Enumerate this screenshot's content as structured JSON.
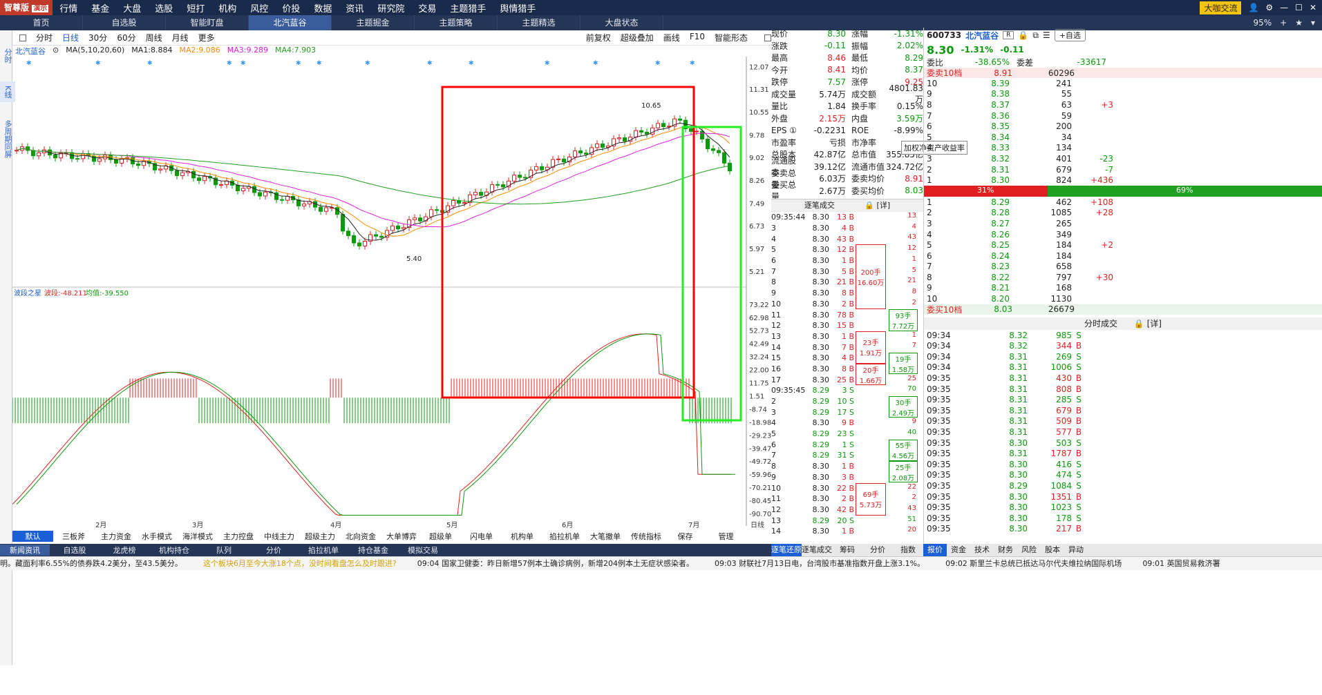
{
  "topbar": {
    "logo": "智尊版",
    "logo_badge": "演示",
    "menus": [
      "行情",
      "基金",
      "大盘",
      "选股",
      "短打",
      "机构",
      "风控",
      "价投",
      "数据",
      "资讯",
      "研究院",
      "交易",
      "主题猎手",
      "舆情猎手"
    ],
    "exchange_btn": "大咖交流"
  },
  "tabs": {
    "items": [
      "首页",
      "自选股",
      "智能盯盘",
      "北汽蓝谷",
      "主题掘金",
      "主题策略",
      "主题精选",
      "大盘状态"
    ],
    "active": "北汽蓝谷",
    "zoom": "95%"
  },
  "left_side": [
    "分时",
    "K线",
    "多周期同屏"
  ],
  "toolbar": {
    "items": [
      "分时",
      "日线",
      "30分",
      "60分",
      "周线",
      "月线",
      "更多"
    ],
    "active": "日线",
    "right": [
      "前复权",
      "超级叠加",
      "画线",
      "F10",
      "智能形态"
    ]
  },
  "ma": {
    "name": "北汽蓝谷",
    "label": "MA(5,10,20,60)",
    "ma1": "MA1:8.884",
    "ma2": "MA2:9.086",
    "ma3": "MA3:9.289",
    "ma4": "MA4:7.903"
  },
  "price_axis": [
    "12.07",
    "11.31",
    "10.55",
    "9.78",
    "9.02",
    "8.26",
    "7.49",
    "6.73",
    "5.97",
    "5.21"
  ],
  "hi_label": "10.65",
  "lo_label": "5.40",
  "indicator": {
    "name": "波段之星",
    "val1": "波段:-48.211",
    "val2": "均值:-39.550",
    "axis": [
      "73.22",
      "62.98",
      "52.73",
      "42.49",
      "32.24",
      "22.00",
      "11.75",
      "1.51",
      "-8.74",
      "-18.98",
      "-29.23",
      "-39.47",
      "-49.72",
      "-59.96",
      "-70.21",
      "-80.45",
      "-90.70"
    ]
  },
  "months": [
    "2月",
    "3月",
    "4月",
    "5月",
    "6月",
    "7月"
  ],
  "axis_label": "日线",
  "bottom_tabs": [
    "默认",
    "三板斧",
    "主力资金",
    "水手模式",
    "海洋模式",
    "主力控盘",
    "中线主力",
    "超级主力",
    "北向资金",
    "大单博弈",
    "超级单",
    "闪电单",
    "机构单",
    "掐拉机单",
    "大笔撤单",
    "传统指标",
    "保存",
    "管理"
  ],
  "bottom_tabs2": [
    "新闻资讯",
    "自选股",
    "龙虎榜",
    "机构持仓",
    "队列",
    "分价",
    "掐拉机单",
    "持仓基金",
    "模拟交易"
  ],
  "ticker": [
    "明。藏面利率6.55%的债券跌4.2美分，至43.5美分。",
    "这个板块6月至今大涨18个点，没时间看盘怎么及时跟进?",
    "09:04 国家卫健委：昨日新增57例本土确诊病例，新增204例本土无症状感染者。",
    "09:03 财联社7月13日电，台湾股市基准指数开盘上涨3.1%。",
    "09:02 斯里兰卡总统已抵达马尔代夫维拉纳国际机场",
    "09:01 英国贸易救济署"
  ],
  "quote": [
    [
      "现价",
      "8.30",
      "涨幅",
      "-1.31%"
    ],
    [
      "涨跌",
      "-0.11",
      "振幅",
      "2.02%"
    ],
    [
      "最高",
      "8.46",
      "最低",
      "8.29"
    ],
    [
      "今开",
      "8.41",
      "均价",
      "8.37"
    ],
    [
      "跌停",
      "7.57",
      "涨停",
      "9.25"
    ],
    [
      "成交量",
      "5.74万",
      "成交额",
      "4801.83万"
    ],
    [
      "量比",
      "1.84",
      "换手率",
      "0.15%"
    ],
    [
      "外盘",
      "2.15万",
      "内盘",
      "3.59万"
    ],
    [
      "EPS ①",
      "-0.2231",
      "ROE",
      "-8.99%"
    ],
    [
      "市盈率",
      "亏损",
      "市净率",
      ""
    ],
    [
      "总股本",
      "42.87亿",
      "总市值",
      "355.85亿"
    ],
    [
      "流通股本",
      "39.12亿",
      "流通市值",
      "324.72亿"
    ],
    [
      "委卖总量",
      "6.03万",
      "委卖均价",
      "8.91"
    ],
    [
      "委买总量",
      "2.67万",
      "委买均价",
      "8.03"
    ]
  ],
  "tooltip": "加权净资产收益率",
  "trades": {
    "title": "逐笔成交",
    "detail": "[详]",
    "rows": [
      [
        "09:35:44",
        "8.30",
        "13 B"
      ],
      [
        "3",
        "8.30",
        "4 B"
      ],
      [
        "4",
        "8.30",
        "43 B"
      ],
      [
        "5",
        "8.30",
        "12 B"
      ],
      [
        "6",
        "8.30",
        "1 B"
      ],
      [
        "7",
        "8.30",
        "5 B"
      ],
      [
        "8",
        "8.30",
        "21 B"
      ],
      [
        "9",
        "8.30",
        "8 B"
      ],
      [
        "10",
        "8.30",
        "2 B"
      ],
      [
        "11",
        "8.30",
        "78 B"
      ],
      [
        "12",
        "8.30",
        "15 B"
      ],
      [
        "13",
        "8.30",
        "1 B"
      ],
      [
        "14",
        "8.30",
        "7 B"
      ],
      [
        "15",
        "8.30",
        "4 B"
      ],
      [
        "16",
        "8.30",
        "8 B"
      ],
      [
        "17",
        "8.30",
        "25 B"
      ],
      [
        "09:35:45",
        "8.29",
        "3 S"
      ],
      [
        "2",
        "8.29",
        "10 S"
      ],
      [
        "3",
        "8.29",
        "17 S"
      ],
      [
        "4",
        "8.30",
        "9 B"
      ],
      [
        "5",
        "8.29",
        "23 S"
      ],
      [
        "6",
        "8.29",
        "1 S"
      ],
      [
        "7",
        "8.29",
        "31 S"
      ],
      [
        "8",
        "8.30",
        "1 B"
      ],
      [
        "9",
        "8.30",
        "3 B"
      ],
      [
        "10",
        "8.30",
        "22 B"
      ],
      [
        "11",
        "8.30",
        "2 B"
      ],
      [
        "12",
        "8.30",
        "42 B"
      ],
      [
        "13",
        "8.29",
        "20 S"
      ],
      [
        "14",
        "8.30",
        "1 B"
      ]
    ],
    "boxes": [
      "200手",
      "16.60万",
      "23手",
      "1.91万",
      "20手",
      "1.66万",
      "69手",
      "5.73万"
    ],
    "boxes2": [
      "93手",
      "7.72万",
      "19手",
      "1.58万",
      "30手",
      "2.49万",
      "55手",
      "4.56万",
      "25手",
      "2.08万"
    ],
    "marks": [
      "13",
      "4",
      "43",
      "12",
      "1",
      "5",
      "21",
      "8",
      "2",
      "78",
      "15",
      "1",
      "7",
      "4",
      "8",
      "25",
      "70",
      "10",
      "40",
      "9",
      "40",
      "1",
      "51",
      "1",
      "3",
      "22",
      "2",
      "43",
      "51",
      "20",
      "43"
    ],
    "tabs": [
      "逐笔还原",
      "逐笔成交",
      "筹码",
      "分价",
      "指数"
    ]
  },
  "stock": {
    "code": "600733",
    "name": "北汽蓝谷",
    "price": "8.30",
    "pct": "-1.31%",
    "chg": "-0.11",
    "ratio_k": "委比",
    "ratio_v": "-38.65%",
    "diff_k": "委差",
    "diff_v": "-33617",
    "btn": "自选"
  },
  "sell10": {
    "title": "委卖10档",
    "price": "8.91",
    "qty": "60296",
    "levels": [
      [
        "10",
        "8.39",
        "241",
        ""
      ],
      [
        "9",
        "8.38",
        "55",
        ""
      ],
      [
        "8",
        "8.37",
        "63",
        "+3"
      ],
      [
        "7",
        "8.36",
        "59",
        ""
      ],
      [
        "6",
        "8.35",
        "200",
        ""
      ],
      [
        "5",
        "8.34",
        "34",
        ""
      ],
      [
        "4",
        "8.33",
        "134",
        ""
      ],
      [
        "3",
        "8.32",
        "401",
        "-23"
      ],
      [
        "2",
        "8.31",
        "679",
        "-7"
      ],
      [
        "1",
        "8.30",
        "824",
        "+436"
      ]
    ]
  },
  "bar": {
    "left": "31%",
    "right": "69%"
  },
  "buy10": {
    "title": "委买10档",
    "price": "8.03",
    "qty": "26679",
    "levels": [
      [
        "1",
        "8.29",
        "462",
        "+108"
      ],
      [
        "2",
        "8.28",
        "1085",
        "+28"
      ],
      [
        "3",
        "8.27",
        "265",
        ""
      ],
      [
        "4",
        "8.26",
        "349",
        ""
      ],
      [
        "5",
        "8.25",
        "184",
        "+2"
      ],
      [
        "6",
        "8.24",
        "184",
        ""
      ],
      [
        "7",
        "8.23",
        "658",
        ""
      ],
      [
        "8",
        "8.22",
        "797",
        "+30"
      ],
      [
        "9",
        "8.21",
        "168",
        ""
      ],
      [
        "10",
        "8.20",
        "1130",
        ""
      ]
    ]
  },
  "rtrades": {
    "title": "分时成交",
    "detail": "[详]",
    "rows": [
      [
        "09:34",
        "8.32",
        "985",
        "S"
      ],
      [
        "09:34",
        "8.32",
        "344",
        "B"
      ],
      [
        "09:34",
        "8.31",
        "269",
        "S"
      ],
      [
        "09:34",
        "8.31",
        "1006",
        "S"
      ],
      [
        "09:35",
        "8.31",
        "430",
        "B"
      ],
      [
        "09:35",
        "8.31",
        "808",
        "B"
      ],
      [
        "09:35",
        "8.31",
        "285",
        "S"
      ],
      [
        "09:35",
        "8.31",
        "679",
        "B"
      ],
      [
        "09:35",
        "8.31",
        "509",
        "B"
      ],
      [
        "09:35",
        "8.31",
        "577",
        "B"
      ],
      [
        "09:35",
        "8.30",
        "503",
        "S"
      ],
      [
        "09:35",
        "8.31",
        "1787",
        "B"
      ],
      [
        "09:35",
        "8.30",
        "416",
        "S"
      ],
      [
        "09:35",
        "8.30",
        "474",
        "S"
      ],
      [
        "09:35",
        "8.29",
        "1084",
        "S"
      ],
      [
        "09:35",
        "8.30",
        "1351",
        "B"
      ],
      [
        "09:35",
        "8.30",
        "1023",
        "S"
      ],
      [
        "09:35",
        "8.30",
        "178",
        "S"
      ],
      [
        "09:35",
        "8.30",
        "217",
        "B"
      ]
    ]
  },
  "r3tabs": [
    "报价",
    "资金",
    "技术",
    "财务",
    "风险",
    "股本",
    "异动"
  ],
  "colors": {
    "up": "#e02020",
    "down": "#0a9a0a",
    "ma1": "#222222",
    "ma2": "#ff8c00",
    "ma3": "#e020e0",
    "ma4": "#20a020"
  }
}
